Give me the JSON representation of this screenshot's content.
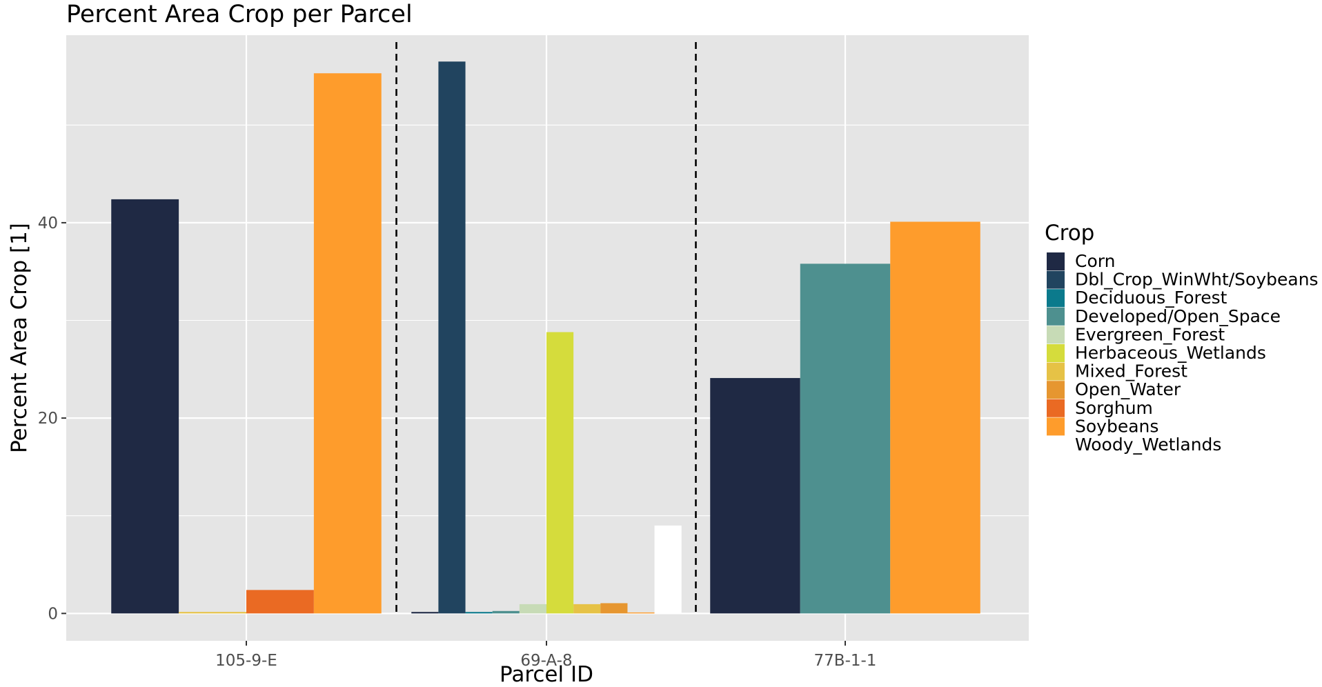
{
  "chart_data": {
    "type": "bar",
    "title": "Percent Area Crop per Parcel",
    "xlabel": "Parcel ID",
    "ylabel": "Percent Area Crop [1]",
    "ylim": [
      -2.8,
      59.2
    ],
    "yticks": [
      0,
      20,
      40
    ],
    "grid": true,
    "legend_title": "Crop",
    "legend_position": "right",
    "categories": [
      "105-9-E",
      "69-A-8",
      "77B-1-1"
    ],
    "separators_between_categories": true,
    "series": [
      {
        "name": "Corn",
        "color": "#1f2944"
      },
      {
        "name": "Dbl_Crop_WinWht/Soybeans",
        "color": "#21445f"
      },
      {
        "name": "Deciduous_Forest",
        "color": "#0b7a8c"
      },
      {
        "name": "Developed/Open_Space",
        "color": "#4e908f"
      },
      {
        "name": "Evergreen_Forest",
        "color": "#c7dbb6"
      },
      {
        "name": "Herbaceous_Wetlands",
        "color": "#d5dc3c"
      },
      {
        "name": "Mixed_Forest",
        "color": "#e6c246"
      },
      {
        "name": "Open_Water",
        "color": "#e69630"
      },
      {
        "name": "Sorghum",
        "color": "#ea6a23"
      },
      {
        "name": "Soybeans",
        "color": "#fe9c2c"
      },
      {
        "name": "Woody_Wetlands",
        "color": "#ffffff"
      }
    ],
    "bars": [
      {
        "category": "105-9-E",
        "crop": "Corn",
        "value": 42.4
      },
      {
        "category": "105-9-E",
        "crop": "Mixed_Forest",
        "value": 0.15
      },
      {
        "category": "105-9-E",
        "crop": "Sorghum",
        "value": 2.4
      },
      {
        "category": "105-9-E",
        "crop": "Soybeans",
        "value": 55.3
      },
      {
        "category": "69-A-8",
        "crop": "Corn",
        "value": 0.15
      },
      {
        "category": "69-A-8",
        "crop": "Dbl_Crop_WinWht/Soybeans",
        "value": 56.5
      },
      {
        "category": "69-A-8",
        "crop": "Deciduous_Forest",
        "value": 0.15
      },
      {
        "category": "69-A-8",
        "crop": "Developed/Open_Space",
        "value": 0.25
      },
      {
        "category": "69-A-8",
        "crop": "Evergreen_Forest",
        "value": 0.95
      },
      {
        "category": "69-A-8",
        "crop": "Herbaceous_Wetlands",
        "value": 28.8
      },
      {
        "category": "69-A-8",
        "crop": "Mixed_Forest",
        "value": 0.95
      },
      {
        "category": "69-A-8",
        "crop": "Open_Water",
        "value": 1.05
      },
      {
        "category": "69-A-8",
        "crop": "Soybeans",
        "value": 0.1
      },
      {
        "category": "69-A-8",
        "crop": "Woody_Wetlands",
        "value": 9.0
      },
      {
        "category": "77B-1-1",
        "crop": "Corn",
        "value": 24.1
      },
      {
        "category": "77B-1-1",
        "crop": "Developed/Open_Space",
        "value": 35.8
      },
      {
        "category": "77B-1-1",
        "crop": "Soybeans",
        "value": 40.1
      }
    ]
  },
  "colors": {
    "panel_background": "#e5e5e5",
    "grid_line": "#ffffff",
    "separator": "#000000",
    "tick_text": "#4d4d4d"
  }
}
